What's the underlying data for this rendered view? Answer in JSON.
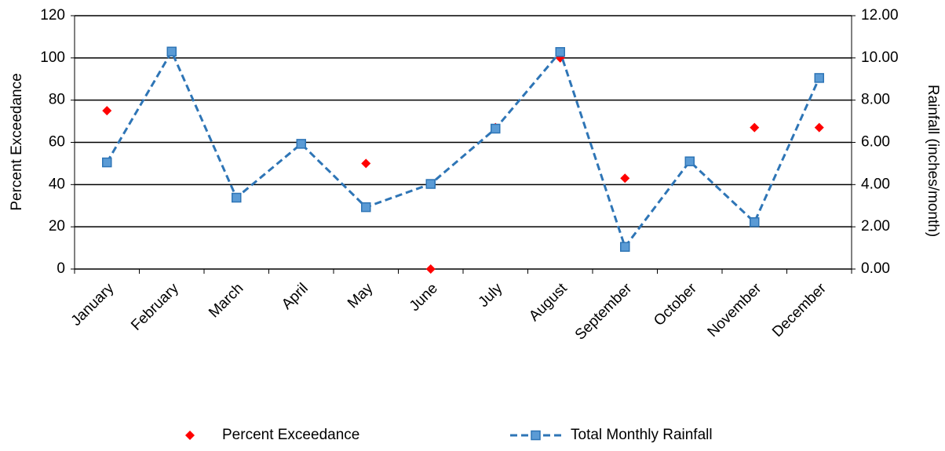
{
  "chart_data": {
    "type": "line",
    "ylabel": "Percent Exceedance",
    "y2label": "Rainfall (inches/month)",
    "categories": [
      "January",
      "February",
      "March",
      "April",
      "May",
      "June",
      "July",
      "August",
      "September",
      "October",
      "November",
      "December"
    ],
    "series": [
      {
        "name": "Percent Exceedance",
        "type": "scatter",
        "color": "#ff0000",
        "axis": "y",
        "values": [
          75,
          null,
          null,
          null,
          50,
          0,
          67,
          100,
          43,
          null,
          67,
          67
        ]
      },
      {
        "name": "Total Monthly Rainfall",
        "type": "line",
        "color": "#2e75b6",
        "axis": "y2",
        "values": [
          5.05,
          10.3,
          3.38,
          5.93,
          2.93,
          4.03,
          6.65,
          10.28,
          1.05,
          5.1,
          2.22,
          9.05
        ]
      }
    ],
    "ylim": [
      0,
      120
    ],
    "yticks": [
      0,
      20,
      40,
      60,
      80,
      100,
      120
    ],
    "y2lim": [
      0,
      12
    ],
    "y2ticks": [
      {
        "value": 0,
        "label": "0.00"
      },
      {
        "value": 2,
        "label": "2.00"
      },
      {
        "value": 4,
        "label": "4.00"
      },
      {
        "value": 6,
        "label": "6.00"
      },
      {
        "value": 8,
        "label": "8.00"
      },
      {
        "value": 10,
        "label": "10.00"
      },
      {
        "value": 12,
        "label": "12.00"
      }
    ],
    "grid": true,
    "legend": "bottom"
  }
}
